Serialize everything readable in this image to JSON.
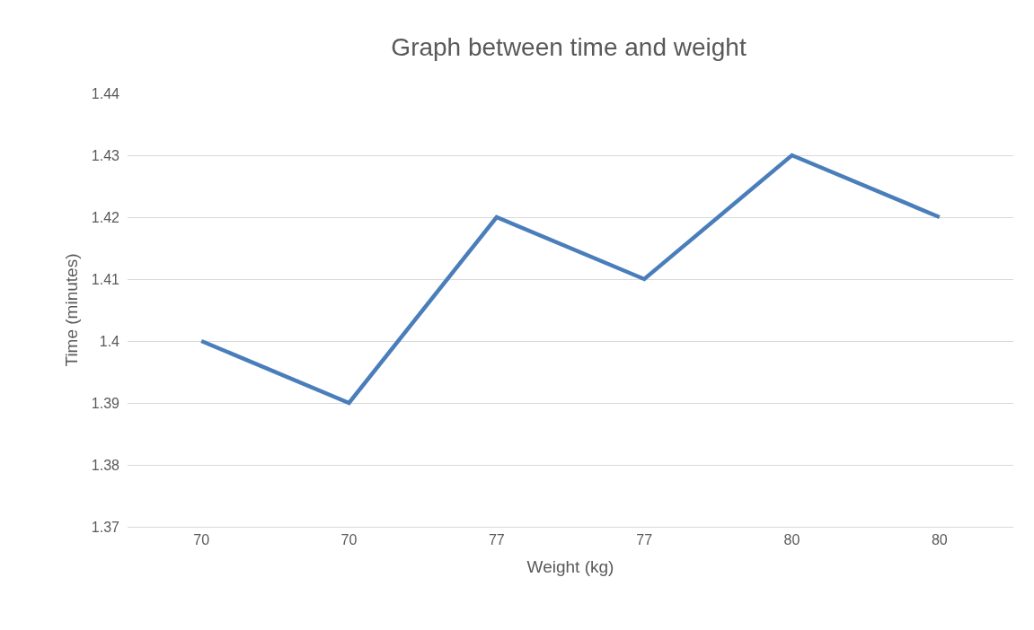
{
  "chart_data": {
    "type": "line",
    "title": "Graph between time and weight",
    "xlabel": "Weight (kg)",
    "ylabel": "Time (minutes)",
    "categories": [
      "70",
      "70",
      "77",
      "77",
      "80",
      "80"
    ],
    "series": [
      {
        "color": "#4a7ebb",
        "values": [
          1.4,
          1.39,
          1.42,
          1.41,
          1.43,
          1.42
        ]
      }
    ],
    "ylim": [
      1.37,
      1.44
    ],
    "yticks": [
      1.37,
      1.38,
      1.39,
      1.4,
      1.41,
      1.42,
      1.43,
      1.44
    ],
    "grid": "y",
    "marker": "none",
    "line_style": "solid"
  }
}
